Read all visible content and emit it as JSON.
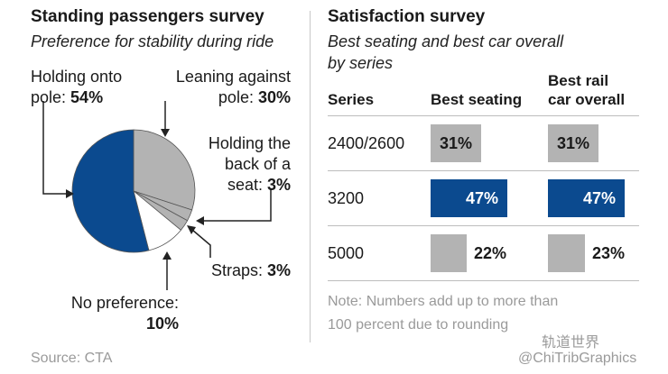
{
  "colors": {
    "blue": "#0b4a8f",
    "gray": "#b3b3b3",
    "white": "#ffffff",
    "text": "#1a1a1a",
    "muted": "#9a9a9a"
  },
  "left": {
    "title": "Standing passengers survey",
    "subtitle": "Preference for stability during ride",
    "labels": {
      "pole_text": "Holding onto pole: ",
      "pole_pct": "54%",
      "lean_text_1": "Leaning against",
      "lean_text_2": "pole: ",
      "lean_pct": "30%",
      "seat_text_1": "Holding the",
      "seat_text_2": "back of a",
      "seat_text_3": "seat: ",
      "seat_pct": "3%",
      "straps_text": "Straps: ",
      "straps_pct": "3%",
      "nopref_text": "No preference:",
      "nopref_pct": "10%"
    },
    "source": "Source: CTA"
  },
  "right": {
    "title": "Satisfaction survey",
    "subtitle_1": "Best seating and best car overall",
    "subtitle_2": "by series",
    "col_series": "Series",
    "col_seating": "Best seating",
    "col_overall_1": "Best rail",
    "col_overall_2": "car overall",
    "note_1": "Note: Numbers add up to more than",
    "note_2": "100 percent due to rounding"
  },
  "watermark": {
    "line1": "轨道世界",
    "line2": "@ChiTribGraphics"
  },
  "chart_data": [
    {
      "type": "pie",
      "title": "Standing passengers survey",
      "subtitle": "Preference for stability during ride",
      "slices": [
        {
          "label": "Holding onto pole",
          "value": 54,
          "color": "#0b4a8f"
        },
        {
          "label": "Leaning against pole",
          "value": 30,
          "color": "#b3b3b3"
        },
        {
          "label": "Holding the back of a seat",
          "value": 3,
          "color": "#b3b3b3"
        },
        {
          "label": "Straps",
          "value": 3,
          "color": "#b3b3b3"
        },
        {
          "label": "No preference",
          "value": 10,
          "color": "#ffffff"
        }
      ]
    },
    {
      "type": "bar",
      "title": "Satisfaction survey",
      "subtitle": "Best seating and best car overall by series",
      "categories": [
        "2400/2600",
        "3200",
        "5000"
      ],
      "series": [
        {
          "name": "Best seating",
          "values": [
            31,
            47,
            22
          ],
          "labels": [
            "31%",
            "47%",
            "22%"
          ]
        },
        {
          "name": "Best rail car overall",
          "values": [
            31,
            47,
            23
          ],
          "labels": [
            "31%",
            "47%",
            "23%"
          ]
        }
      ],
      "bar_colors": [
        "#b3b3b3",
        "#0b4a8f",
        "#b3b3b3"
      ]
    }
  ]
}
